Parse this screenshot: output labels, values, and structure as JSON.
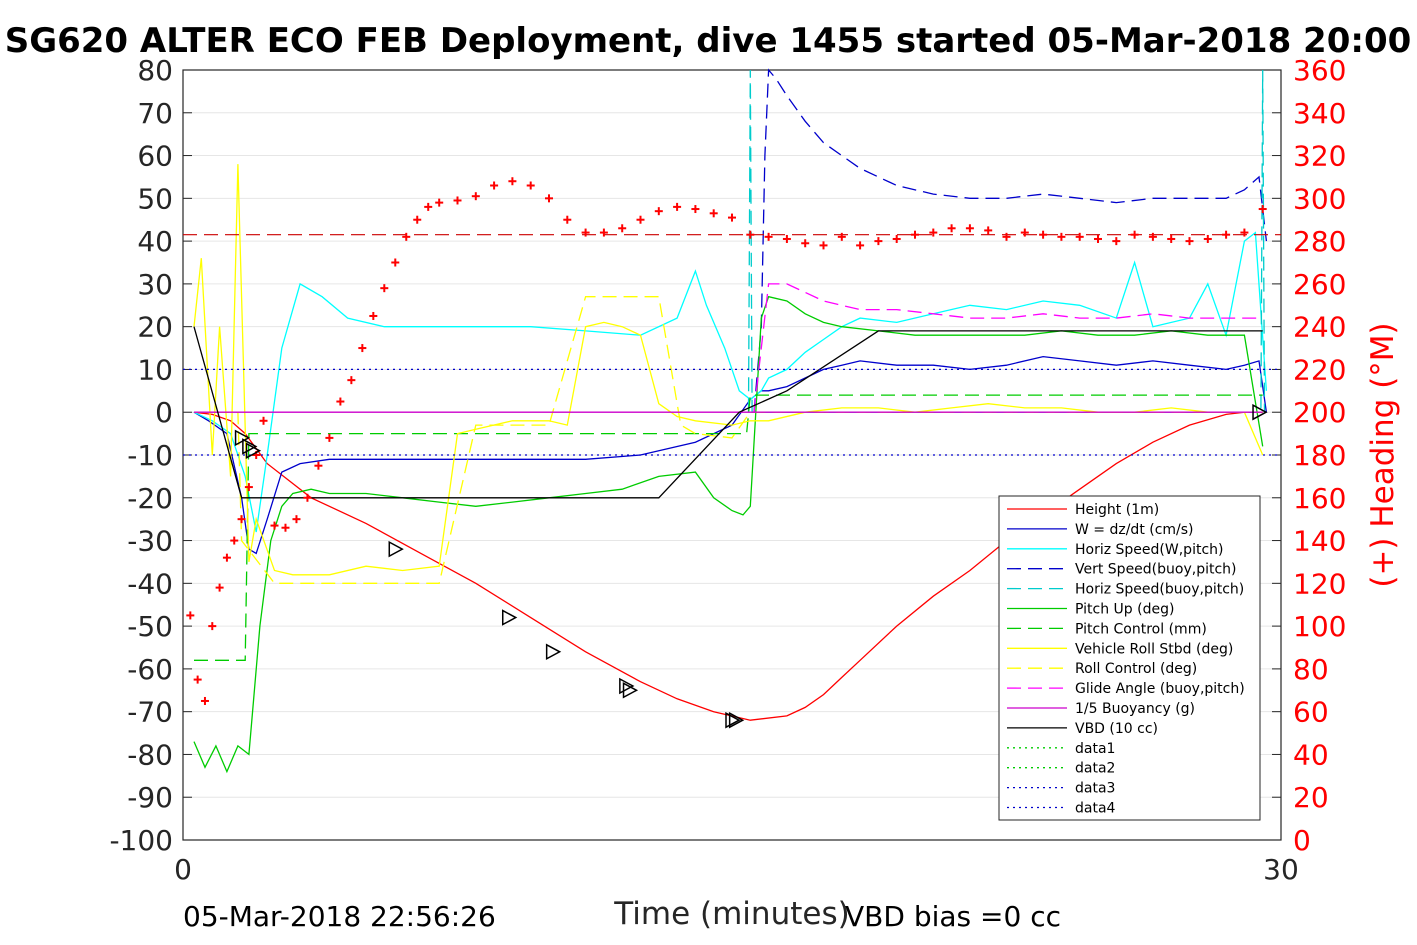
{
  "chart_data": {
    "type": "line",
    "title": "SG620 ALTER ECO FEB Deployment, dive 1455 started 05-Mar-2018 20:00",
    "xlabel": "Time (minutes)",
    "ylabel_right": "(+) Heading (°M)",
    "xlim": [
      0,
      30
    ],
    "ylim": [
      -100,
      80
    ],
    "ylim_right": [
      0,
      360
    ],
    "x_ticks": [
      "0",
      "30"
    ],
    "y_ticks": [
      "80",
      "70",
      "60",
      "50",
      "40",
      "30",
      "20",
      "10",
      "0",
      "-10",
      "-20",
      "-30",
      "-40",
      "-50",
      "-60",
      "-70",
      "-80",
      "-90",
      "-100"
    ],
    "y_ticks_right": [
      "360",
      "340",
      "320",
      "300",
      "280",
      "260",
      "240",
      "220",
      "200",
      "180",
      "160",
      "140",
      "120",
      "100",
      "80",
      "60",
      "40",
      "20",
      "0"
    ],
    "grid": true,
    "legend_position": "lower-right",
    "footer_left": "05-Mar-2018 22:56:26",
    "footer_right": "VBD bias =0 cc",
    "series": [
      {
        "name": "Height (1m)",
        "color": "#ff0000",
        "style": "solid",
        "x": [
          0.3,
          0.8,
          1.3,
          1.7,
          2.3,
          3.5,
          5,
          6.5,
          8,
          9.5,
          11,
          12.5,
          13.5,
          14.5,
          15.5,
          16.5,
          17,
          17.5,
          18,
          18.5,
          19.5,
          20.5,
          21.5,
          22.5,
          23.5,
          24.5,
          25.5,
          26.5,
          27.5,
          28.5,
          29,
          29.5
        ],
        "y": [
          0,
          -0.5,
          -2,
          -5,
          -12,
          -20,
          -26,
          -33,
          -40,
          -48,
          -56,
          -63,
          -67,
          -70,
          -72,
          -71,
          -69,
          -66,
          -62,
          -58,
          -50,
          -43,
          -37,
          -30,
          -24,
          -18,
          -12,
          -7,
          -3,
          -0.5,
          0,
          0
        ]
      },
      {
        "name": "W = dz/dt (cm/s)",
        "color": "#0000cc",
        "style": "solid",
        "x": [
          0.3,
          0.7,
          1.2,
          1.6,
          1.8,
          2,
          2.3,
          2.7,
          3.2,
          4,
          5,
          6.5,
          8,
          9.5,
          11,
          12.5,
          14,
          15,
          15.5,
          15.8,
          16,
          16.5,
          17,
          17.5,
          18,
          18.5,
          19.5,
          20.5,
          21.5,
          22.5,
          23.5,
          24.5,
          25.5,
          26.5,
          27.5,
          28.5,
          29,
          29.4,
          29.6
        ],
        "y": [
          0,
          -2,
          -5,
          -20,
          -32,
          -33,
          -25,
          -14,
          -12,
          -11,
          -11,
          -11,
          -11,
          -11,
          -11,
          -10,
          -7,
          -3,
          3,
          5,
          5,
          6,
          8,
          10,
          11,
          12,
          11,
          11,
          10,
          11,
          13,
          12,
          11,
          12,
          11,
          10,
          11,
          12,
          0
        ]
      },
      {
        "name": "Horiz Speed(W,pitch)",
        "color": "#00ffff",
        "style": "solid",
        "x": [
          0.3,
          0.8,
          1.3,
          1.7,
          2,
          2.3,
          2.7,
          3.2,
          3.8,
          4.5,
          5.5,
          6.5,
          8,
          9.5,
          11,
          12.5,
          13.5,
          14,
          14.3,
          14.8,
          15.2,
          15.5,
          15.8,
          16,
          16.5,
          17,
          17.5,
          18,
          18.5,
          19.5,
          20.5,
          21.5,
          22.5,
          23.5,
          24.5,
          25.5,
          26,
          26.5,
          27.5,
          28,
          28.5,
          29,
          29.3,
          29.6
        ],
        "y": [
          0,
          -2,
          -5,
          -15,
          -28,
          -10,
          15,
          30,
          27,
          22,
          20,
          20,
          20,
          20,
          19,
          18,
          22,
          33,
          25,
          15,
          5,
          3,
          5,
          8,
          10,
          14,
          17,
          20,
          22,
          21,
          23,
          25,
          24,
          26,
          25,
          22,
          35,
          20,
          22,
          30,
          18,
          40,
          42,
          5
        ]
      },
      {
        "name": "Vert Speed(buoy,pitch)",
        "color": "#0000cc",
        "style": "dashed",
        "x": [
          15.6,
          15.8,
          15.9,
          16,
          16.2,
          16.5,
          17,
          17.5,
          18,
          18.5,
          19.5,
          20.5,
          21.5,
          22.5,
          23.5,
          24.5,
          25.5,
          26.5,
          27.5,
          28.5,
          29,
          29.4,
          29.6
        ],
        "y": [
          0,
          20,
          60,
          80,
          78,
          74,
          68,
          63,
          60,
          57,
          53,
          51,
          50,
          50,
          51,
          50,
          49,
          50,
          50,
          50,
          52,
          55,
          40
        ]
      },
      {
        "name": "Horiz Speed(buoy,pitch)",
        "color": "#00cccc",
        "style": "dashed",
        "x": [
          15.45,
          15.5,
          15.55,
          29.45,
          29.5,
          29.55
        ],
        "y": [
          0,
          80,
          0,
          0,
          80,
          0
        ]
      },
      {
        "name": "Pitch Up (deg)",
        "color": "#00cc00",
        "style": "solid",
        "x": [
          0.3,
          0.6,
          0.9,
          1.2,
          1.5,
          1.8,
          2.1,
          2.4,
          2.7,
          3,
          3.5,
          4,
          5,
          6,
          7,
          8,
          9,
          10,
          11,
          12,
          13,
          14,
          14.5,
          15,
          15.3,
          15.5,
          15.8,
          16,
          16.5,
          17,
          17.5,
          18,
          19,
          20,
          21,
          22,
          23,
          24,
          25,
          26,
          27,
          28,
          29,
          29.5
        ],
        "y": [
          -77,
          -83,
          -78,
          -84,
          -78,
          -80,
          -50,
          -30,
          -22,
          -19,
          -18,
          -19,
          -19,
          -20,
          -21,
          -22,
          -21,
          -20,
          -19,
          -18,
          -15,
          -14,
          -20,
          -23,
          -24,
          -22,
          22,
          27,
          26,
          23,
          21,
          20,
          19,
          18,
          18,
          18,
          18,
          19,
          18,
          18,
          19,
          18,
          18,
          -8
        ]
      },
      {
        "name": "Pitch Control (mm)",
        "color": "#00cc00",
        "style": "dashed",
        "x": [
          0.3,
          1.7,
          1.8,
          3,
          8,
          12,
          15.4,
          15.5,
          29.5
        ],
        "y": [
          -58,
          -58,
          -5,
          -5,
          -5,
          -5,
          -5,
          4,
          4
        ]
      },
      {
        "name": "Vehicle Roll Stbd (deg)",
        "color": "#ffff00",
        "style": "solid",
        "x": [
          0.3,
          0.5,
          0.8,
          1,
          1.3,
          1.5,
          1.8,
          2,
          2.5,
          3,
          4,
          5,
          6,
          7,
          7.5,
          8,
          9,
          10,
          10.5,
          11,
          11.5,
          12,
          12.5,
          13,
          13.5,
          14,
          15,
          15.5,
          16,
          17,
          18,
          19,
          20,
          21,
          22,
          23,
          24,
          25,
          26,
          27,
          28,
          29,
          29.5
        ],
        "y": [
          20,
          36,
          -10,
          20,
          -15,
          58,
          -35,
          -25,
          -37,
          -38,
          -38,
          -36,
          -37,
          -36,
          -5,
          -4,
          -2,
          -2,
          -3,
          20,
          21,
          20,
          18,
          2,
          -1,
          -2,
          -3,
          -2,
          -2,
          0,
          1,
          1,
          0,
          1,
          2,
          1,
          1,
          0,
          0,
          1,
          0,
          0,
          -10
        ]
      },
      {
        "name": "Roll Control (deg)",
        "color": "#ffff00",
        "style": "dashed",
        "x": [
          0.3,
          1.5,
          1.6,
          2.5,
          3,
          6,
          7,
          8,
          10,
          11,
          11.5,
          13,
          13.6,
          14,
          15,
          15.5,
          29.5
        ],
        "y": [
          0,
          0,
          -30,
          -40,
          -40,
          -40,
          -40,
          -3,
          -3,
          27,
          27,
          27,
          -3,
          -5,
          -6,
          0,
          0
        ]
      },
      {
        "name": "Glide Angle (buoy,pitch)",
        "color": "#ff00ff",
        "style": "dashed",
        "x": [
          15.6,
          16,
          16.5,
          17,
          17.5,
          18,
          18.5,
          19.5,
          20.5,
          21.5,
          22.5,
          23.5,
          24.5,
          25.5,
          26.5,
          27.5,
          28.5,
          29.5
        ],
        "y": [
          0,
          30,
          30,
          28,
          26,
          25,
          24,
          24,
          23,
          22,
          22,
          23,
          22,
          22,
          23,
          22,
          22,
          22
        ]
      },
      {
        "name": "1/5 Buoyancy (g)",
        "color": "#cc00cc",
        "style": "solid",
        "x": [
          0.3,
          29.5
        ],
        "y": [
          0,
          0
        ]
      },
      {
        "name": "VBD (10 cc)",
        "color": "#000000",
        "style": "solid",
        "x": [
          0.3,
          1.6,
          3,
          6,
          10,
          13,
          15.2,
          16.5,
          19,
          29.5
        ],
        "y": [
          20,
          -20,
          -20,
          -20,
          -20,
          -20,
          0,
          5,
          19,
          19
        ]
      },
      {
        "name": "data1",
        "color": "#00cc00",
        "style": "dotted",
        "x": [],
        "y": []
      },
      {
        "name": "data2",
        "color": "#00cc00",
        "style": "dotted",
        "x": [],
        "y": []
      },
      {
        "name": "data3",
        "color": "#0000cc",
        "style": "dotted",
        "x": [
          0,
          30
        ],
        "y": [
          10,
          10
        ]
      },
      {
        "name": "data4",
        "color": "#0000cc",
        "style": "dotted",
        "x": [
          0,
          30
        ],
        "y": [
          -10,
          -10
        ]
      }
    ],
    "heading": {
      "axis": "right",
      "color": "#ff0000",
      "marker": "+",
      "x": [
        0.2,
        0.4,
        0.6,
        0.8,
        1.0,
        1.2,
        1.4,
        1.6,
        1.8,
        2.0,
        2.2,
        2.5,
        2.8,
        3.1,
        3.4,
        3.7,
        4.0,
        4.3,
        4.6,
        4.9,
        5.2,
        5.5,
        5.8,
        6.1,
        6.4,
        6.7,
        7.0,
        7.5,
        8,
        8.5,
        9,
        9.5,
        10,
        10.5,
        11,
        11.5,
        12,
        12.5,
        13,
        13.5,
        14,
        14.5,
        15,
        15.5,
        16,
        16.5,
        17,
        17.5,
        18,
        18.5,
        19,
        19.5,
        20,
        20.5,
        21,
        21.5,
        22,
        22.5,
        23,
        23.5,
        24,
        24.5,
        25,
        25.5,
        26,
        26.5,
        27,
        27.5,
        28,
        28.5,
        29,
        29.5
      ],
      "y": [
        105,
        75,
        65,
        100,
        118,
        132,
        140,
        150,
        165,
        180,
        196,
        147,
        146,
        150,
        160,
        175,
        188,
        205,
        215,
        230,
        245,
        258,
        270,
        282,
        290,
        296,
        298,
        299,
        301,
        306,
        308,
        306,
        300,
        290,
        284,
        284,
        286,
        290,
        294,
        296,
        295,
        293,
        291,
        283,
        282,
        281,
        279,
        278,
        282,
        278,
        280,
        281,
        283,
        284,
        286,
        286,
        285,
        282,
        284,
        283,
        282,
        282,
        281,
        280,
        283,
        282,
        281,
        280,
        281,
        283,
        284,
        295
      ]
    },
    "heading_ref": {
      "color": "#cc0000",
      "style": "dashed",
      "y": 283
    },
    "markers": {
      "symbol": "triangle",
      "points": [
        [
          1.6,
          -6
        ],
        [
          1.9,
          -9
        ],
        [
          1.8,
          -8
        ],
        [
          5.8,
          -32
        ],
        [
          8.9,
          -48
        ],
        [
          10.1,
          -56
        ],
        [
          12.1,
          -64
        ],
        [
          12.2,
          -65
        ],
        [
          15.0,
          -72
        ],
        [
          15.1,
          -72
        ],
        [
          29.4,
          0
        ]
      ]
    }
  }
}
